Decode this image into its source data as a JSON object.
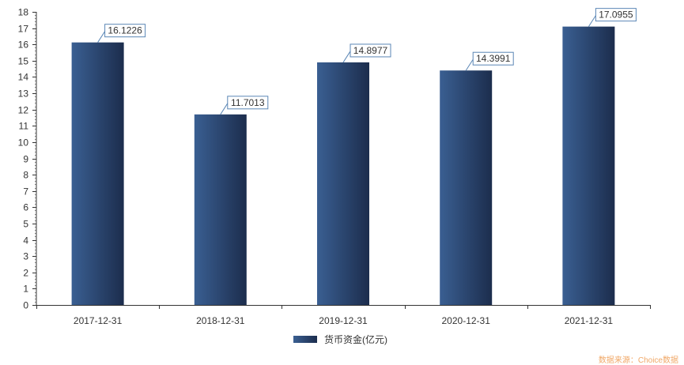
{
  "chart_data": {
    "type": "bar",
    "categories": [
      "2017-12-31",
      "2018-12-31",
      "2019-12-31",
      "2020-12-31",
      "2021-12-31"
    ],
    "series": [
      {
        "name": "货币资金(亿元)",
        "values": [
          16.1226,
          11.7013,
          14.8977,
          14.3991,
          17.0955
        ],
        "labels": [
          "16.1226",
          "11.7013",
          "14.8977",
          "14.3991",
          "17.0955"
        ]
      }
    ],
    "ylim": [
      0,
      18
    ],
    "yticks": [
      0,
      1,
      2,
      3,
      4,
      5,
      6,
      7,
      8,
      9,
      10,
      11,
      12,
      13,
      14,
      15,
      16,
      17,
      18
    ],
    "grid": false,
    "legend_position": "bottom-center",
    "colors": {
      "bar_left": "#3a5f92",
      "bar_right": "#1c2d4d",
      "axis": "#333333",
      "label_border": "#5a86b5",
      "leader_line": "#5a86b5",
      "source_text": "#f0a868"
    }
  },
  "source_note": "数据来源：Choice数据"
}
